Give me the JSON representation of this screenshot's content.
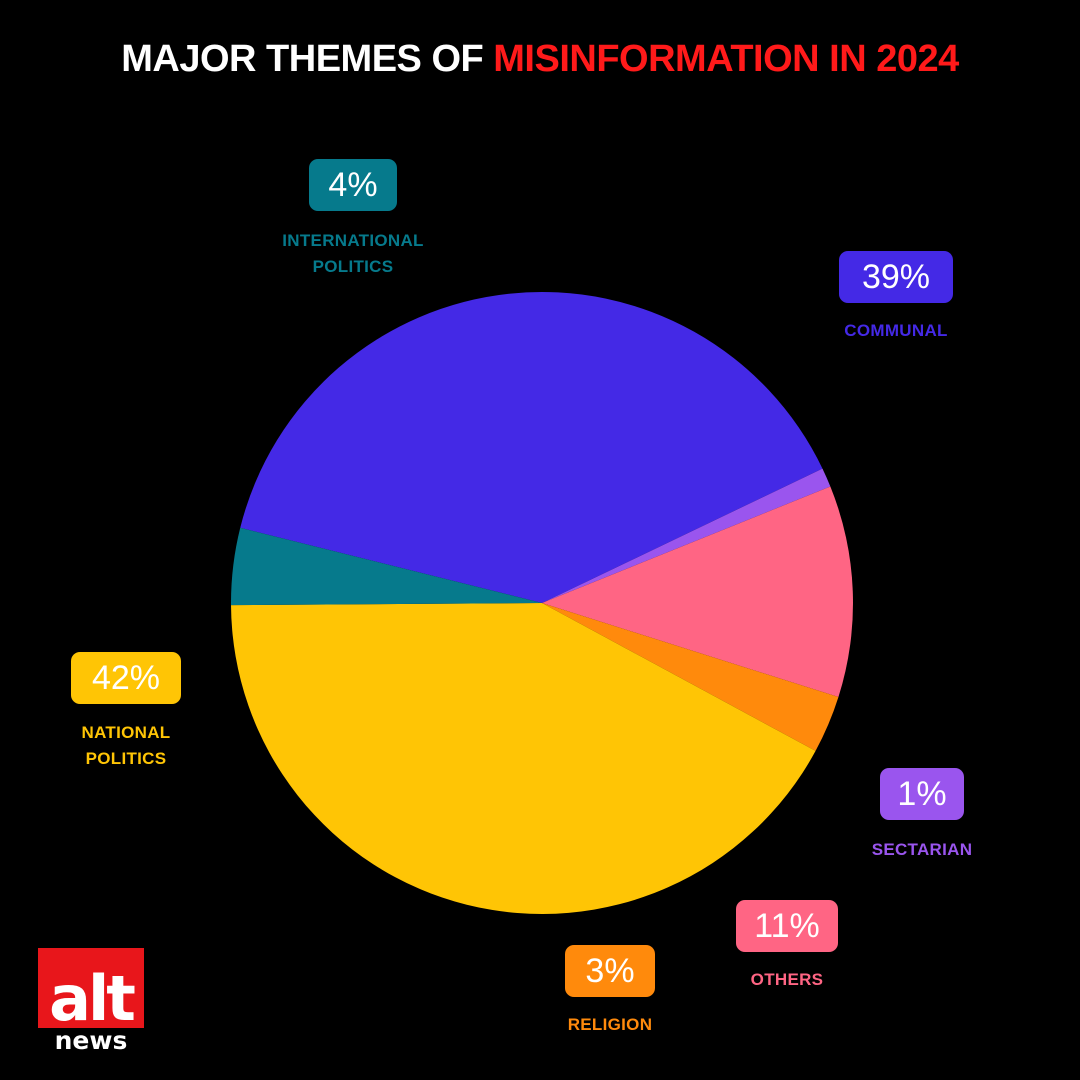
{
  "title": {
    "part1": "MAJOR THEMES OF ",
    "part2": "MISINFORMATION IN 2024"
  },
  "colors": {
    "title_highlight": "#ff1a1a",
    "background": "#000000"
  },
  "chart_data": {
    "type": "pie",
    "title": "MAJOR THEMES OF MISINFORMATION IN 2024",
    "slices": [
      {
        "label": "COMMUNAL",
        "value": 39,
        "value_label": "39%",
        "color": "#4429E6"
      },
      {
        "label": "SECTARIAN",
        "value": 1,
        "value_label": "1%",
        "color": "#9A55EE"
      },
      {
        "label": "OTHERS",
        "value": 11,
        "value_label": "11%",
        "color": "#FF6584"
      },
      {
        "label": "RELIGION",
        "value": 3,
        "value_label": "3%",
        "color": "#FF8A0C"
      },
      {
        "label": "NATIONAL POLITICS",
        "label_lines": [
          "NATIONAL",
          "POLITICS"
        ],
        "value": 42,
        "value_label": "42%",
        "color": "#FFC505"
      },
      {
        "label": "INTERNATIONAL POLITICS",
        "label_lines": [
          "INTERNATIONAL",
          "POLITICS"
        ],
        "value": 4,
        "value_label": "4%",
        "color": "#067A8C"
      }
    ]
  },
  "logo": {
    "top": "alt",
    "bottom": "news",
    "color": "#E8161B"
  }
}
